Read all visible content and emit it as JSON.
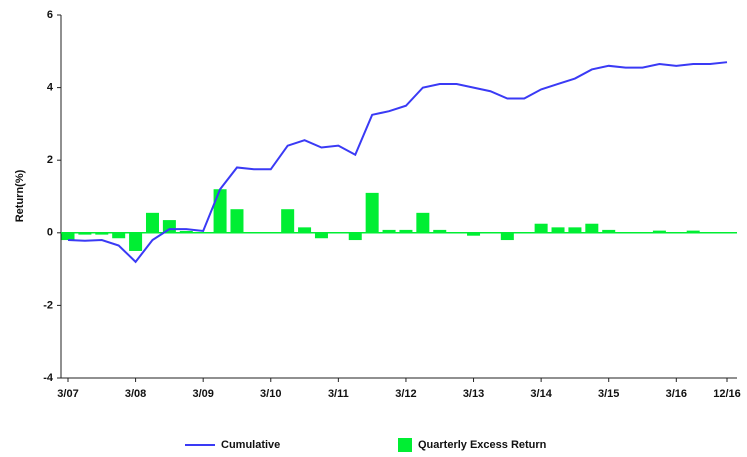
{
  "chart_data": {
    "type": "combo",
    "y_label": "Return(%)",
    "categories": [
      "3/07",
      null,
      null,
      null,
      "3/08",
      null,
      null,
      null,
      "3/09",
      null,
      null,
      null,
      "3/10",
      null,
      null,
      null,
      "3/11",
      null,
      null,
      null,
      "3/12",
      null,
      null,
      null,
      "3/13",
      null,
      null,
      null,
      "3/14",
      null,
      null,
      null,
      "3/15",
      null,
      null,
      null,
      "3/16",
      null,
      null,
      "12/16"
    ],
    "series": [
      {
        "name": "Cumulative",
        "type": "line",
        "color": "#3a3af5",
        "values": [
          -0.2,
          -0.22,
          -0.2,
          -0.35,
          -0.8,
          -0.2,
          0.1,
          0.1,
          0.05,
          1.2,
          1.8,
          1.75,
          1.75,
          2.4,
          2.55,
          2.35,
          2.4,
          2.15,
          3.25,
          3.35,
          3.5,
          4.0,
          4.1,
          4.1,
          4.0,
          3.9,
          3.7,
          3.7,
          3.95,
          4.1,
          4.25,
          4.5,
          4.6,
          4.55,
          4.55,
          4.65,
          4.6,
          4.65,
          4.65,
          4.7
        ]
      },
      {
        "name": "Quarterly Excess Return",
        "type": "bar",
        "color": "#00ee33",
        "values": [
          -0.2,
          -0.05,
          -0.05,
          -0.15,
          -0.5,
          0.55,
          0.35,
          0.05,
          0.0,
          1.2,
          0.65,
          0.0,
          0.0,
          0.65,
          0.15,
          -0.15,
          0.0,
          -0.2,
          1.1,
          0.08,
          0.08,
          0.55,
          0.08,
          0.02,
          -0.08,
          0.02,
          -0.2,
          0.02,
          0.25,
          0.15,
          0.15,
          0.25,
          0.08,
          0.02,
          0.02,
          0.06,
          0.02,
          0.06,
          0.02,
          0.02
        ]
      }
    ],
    "ylim": [
      -4,
      6
    ],
    "yticks": [
      -4,
      -2,
      0,
      2,
      4,
      6
    ]
  }
}
